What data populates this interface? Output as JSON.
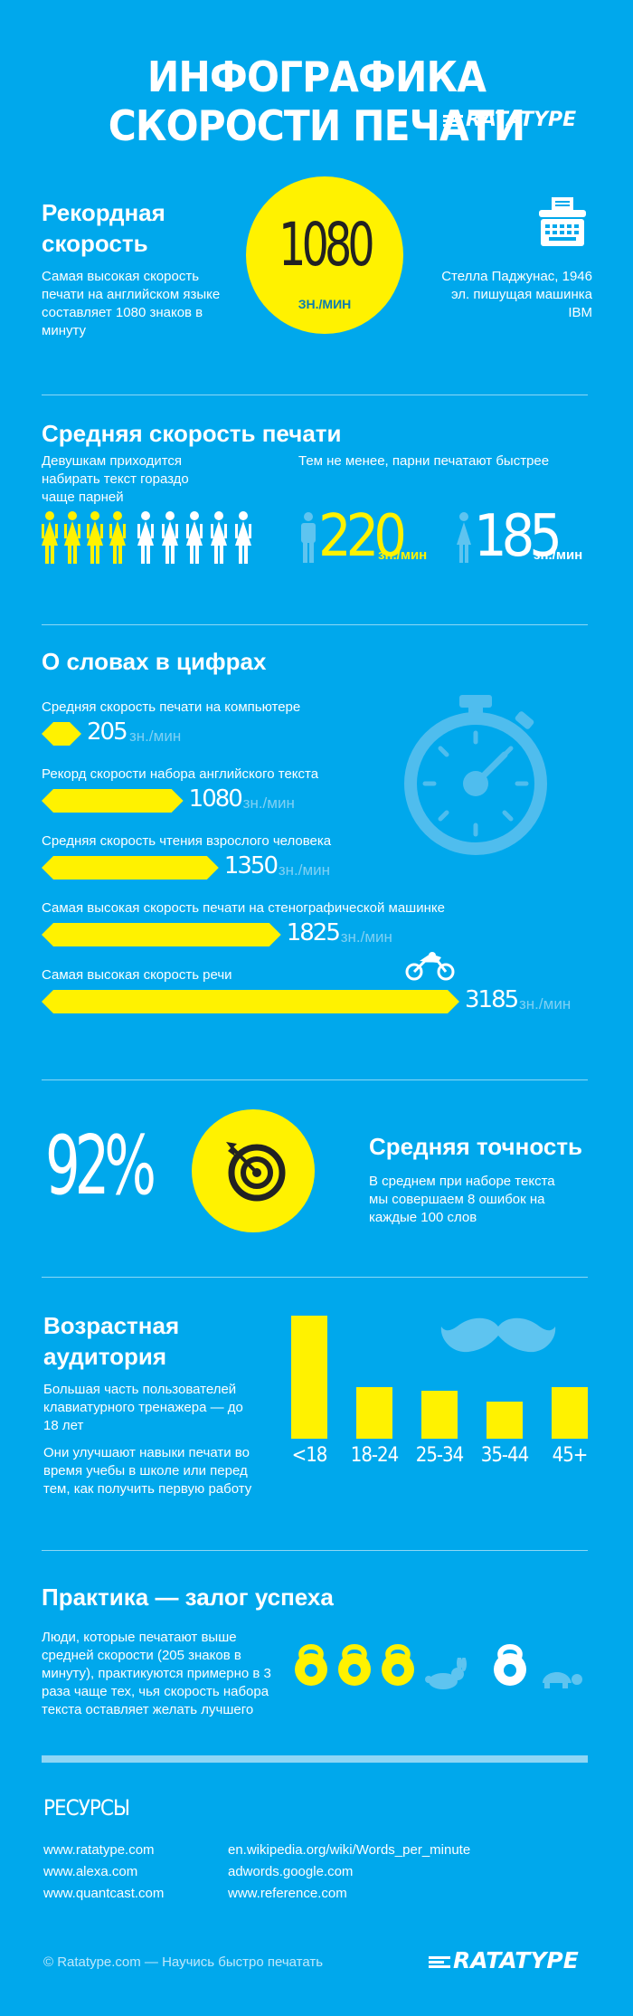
{
  "header": {
    "title": "ИНФОГРАФИКА СКОРОСТИ ПЕЧАТИ",
    "logo": "RATATYPE"
  },
  "record": {
    "heading": "Рекордная скорость",
    "text": "Самая высокая скорость печати на английском языке составляет 1080 знаков в минуту",
    "value": "1080",
    "unit": "ЗН./МИН",
    "caption": "Стелла Паджунас, 1946 эл. пишущая машинка IBM",
    "icon": "typewriter-icon"
  },
  "average": {
    "heading": "Средняя скорость печати",
    "left_text": "Девушкам приходится набирать текст гораздо чаще парней",
    "right_text": "Тем не менее, парни печатают быстрее",
    "people_total": 9,
    "people_highlighted": 4,
    "male_value": "220",
    "female_value": "185",
    "unit": "зн./мин",
    "highlight_color": "#fff200"
  },
  "words": {
    "heading": "О словах в цифрах",
    "unit": "зн./мин",
    "max": 3185,
    "items": [
      {
        "label": "Средняя скорость печати на компьютере",
        "value": 205,
        "display": "205"
      },
      {
        "label": "Рекорд скорости набора английского текста",
        "value": 1080,
        "display": "1080"
      },
      {
        "label": "Средняя скорость чтения взрослого человека",
        "value": 1350,
        "display": "1350"
      },
      {
        "label": "Самая высокая скорость печати на стенографической машинке",
        "value": 1825,
        "display": "1825"
      },
      {
        "label": "Самая высокая скорость речи",
        "value": 3185,
        "display": "3185"
      }
    ]
  },
  "accuracy": {
    "value": "92%",
    "heading": "Средняя точность",
    "text": "В среднем при наборе текста мы совершаем 8 ошибок на каждые 100 слов",
    "icon": "target-icon"
  },
  "age": {
    "heading": "Возрастная аудитория",
    "text1": "Большая часть пользователей клавиатурного тренажера — до 18 лет",
    "text2": "Они улучшают навыки печати во время учебы в школе или перед тем, как получить первую работу",
    "groups": [
      {
        "label": "<18",
        "value": 1.0
      },
      {
        "label": "18-24",
        "value": 0.42
      },
      {
        "label": "25-34",
        "value": 0.39
      },
      {
        "label": "35-44",
        "value": 0.3
      },
      {
        "label": "45+",
        "value": 0.42
      }
    ]
  },
  "practice": {
    "heading": "Практика — залог успеха",
    "text": "Люди, которые печатают выше средней скорости (205 знаков в минуту), практикуются примерно в 3 раза чаще тех, чья скорость набора текста оставляет желать лучшего"
  },
  "resources": {
    "heading": "РЕСУРСЫ",
    "left": [
      "www.ratatype.com",
      "www.alexa.com",
      "www.quantcast.com"
    ],
    "right": [
      "en.wikipedia.org/wiki/Words_per_minute",
      "adwords.google.com",
      "www.reference.com"
    ]
  },
  "footer": {
    "copyright": "© Ratatype.com — Научись быстро печатать",
    "logo": "RATATYPE"
  }
}
